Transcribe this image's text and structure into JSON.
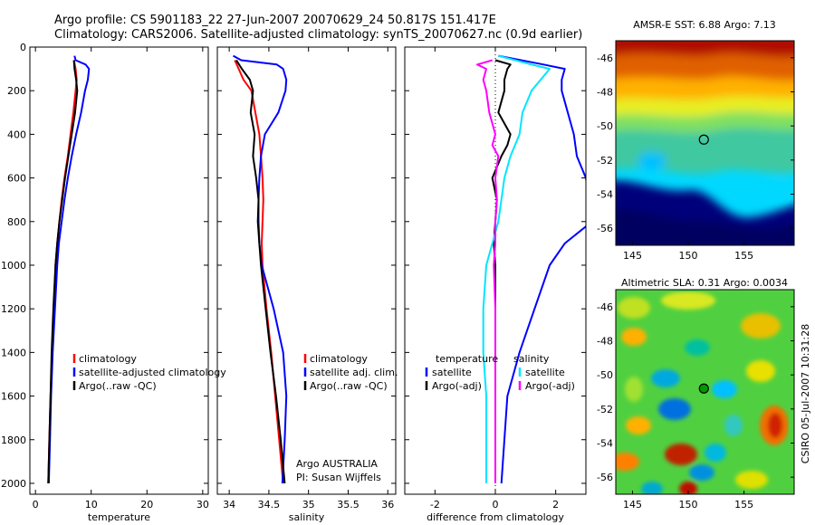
{
  "header": {
    "title_line1": "Argo profile: CS 5901183_22 27-Jun-2007 20070629_24 50.817S 151.417E",
    "title_line2": "Climatology: CARS2006. Satellite-adjusted climatology: synTS_20070627.nc (0.9d earlier)"
  },
  "credit": {
    "float_line1": "Argo AUSTRALIA",
    "float_line2": "PI: Susan Wijffels",
    "stamp": "CSIRO 05-Jul-2007 10:31:28"
  },
  "colors": {
    "climatology": "#ff0000",
    "satellite": "#0000ff",
    "argo": "#000000",
    "satellite_diff_sal": "#00e6ff",
    "argo_diff_sal": "#ff00ff",
    "axis": "#000000"
  },
  "chart_data": [
    {
      "type": "line",
      "id": "temperature",
      "xlabel": "temperature",
      "ylabel": "",
      "xlim": [
        -1,
        31
      ],
      "ylim": [
        2050,
        0
      ],
      "xticks": [
        0,
        10,
        20,
        30
      ],
      "yticks": [
        0,
        200,
        400,
        600,
        800,
        1000,
        1200,
        1400,
        1600,
        1800,
        2000
      ],
      "legend": {
        "position": "lower-right",
        "entries": [
          "climatology",
          "satellite-adjusted climatology",
          "Argo(..raw -QC)"
        ]
      },
      "series": [
        {
          "name": "climatology",
          "color": "#ff0000",
          "points": [
            [
              6.9,
              60
            ],
            [
              7.2,
              100
            ],
            [
              7.4,
              150
            ],
            [
              7.2,
              200
            ],
            [
              6.8,
              300
            ],
            [
              6.3,
              400
            ],
            [
              5.8,
              500
            ],
            [
              5.2,
              600
            ],
            [
              4.7,
              700
            ],
            [
              4.3,
              800
            ],
            [
              3.9,
              900
            ],
            [
              3.6,
              1000
            ],
            [
              3.3,
              1200
            ],
            [
              3.0,
              1400
            ],
            [
              2.7,
              1600
            ],
            [
              2.5,
              1800
            ],
            [
              2.3,
              2000
            ]
          ]
        },
        {
          "name": "satellite-adjusted climatology",
          "color": "#0000ff",
          "points": [
            [
              7.0,
              40
            ],
            [
              7.2,
              60
            ],
            [
              9.0,
              80
            ],
            [
              9.6,
              100
            ],
            [
              9.4,
              150
            ],
            [
              8.9,
              200
            ],
            [
              8.2,
              300
            ],
            [
              7.3,
              400
            ],
            [
              6.5,
              500
            ],
            [
              5.8,
              600
            ],
            [
              5.2,
              700
            ],
            [
              4.7,
              800
            ],
            [
              4.2,
              900
            ],
            [
              3.9,
              1000
            ],
            [
              3.5,
              1200
            ],
            [
              3.1,
              1400
            ],
            [
              2.8,
              1600
            ],
            [
              2.6,
              1800
            ],
            [
              2.4,
              2000
            ]
          ]
        },
        {
          "name": "Argo(..raw -QC)",
          "color": "#000000",
          "points": [
            [
              6.9,
              60
            ],
            [
              7.0,
              100
            ],
            [
              7.3,
              150
            ],
            [
              7.5,
              200
            ],
            [
              7.1,
              300
            ],
            [
              6.5,
              400
            ],
            [
              5.9,
              500
            ],
            [
              5.3,
              600
            ],
            [
              4.8,
              700
            ],
            [
              4.3,
              800
            ],
            [
              3.9,
              900
            ],
            [
              3.6,
              1000
            ],
            [
              3.2,
              1200
            ],
            [
              2.9,
              1400
            ],
            [
              2.7,
              1600
            ],
            [
              2.5,
              1800
            ],
            [
              2.3,
              2000
            ]
          ]
        }
      ]
    },
    {
      "type": "line",
      "id": "salinity",
      "xlabel": "salinity",
      "ylabel": "",
      "xlim": [
        33.85,
        36.1
      ],
      "ylim": [
        2050,
        0
      ],
      "xticks": [
        34,
        34.5,
        35,
        35.5,
        36
      ],
      "yticks": [
        0,
        200,
        400,
        600,
        800,
        1000,
        1200,
        1400,
        1600,
        1800,
        2000
      ],
      "legend": {
        "position": "lower-right",
        "entries": [
          "climatology",
          "satellite adj. clim.",
          "Argo(..raw -QC)"
        ]
      },
      "series": [
        {
          "name": "climatology",
          "color": "#ff0000",
          "points": [
            [
              34.07,
              60
            ],
            [
              34.12,
              100
            ],
            [
              34.18,
              150
            ],
            [
              34.28,
              200
            ],
            [
              34.33,
              300
            ],
            [
              34.38,
              400
            ],
            [
              34.4,
              500
            ],
            [
              34.42,
              600
            ],
            [
              34.43,
              700
            ],
            [
              34.42,
              800
            ],
            [
              34.41,
              900
            ],
            [
              34.42,
              1000
            ],
            [
              34.47,
              1200
            ],
            [
              34.53,
              1400
            ],
            [
              34.58,
              1600
            ],
            [
              34.63,
              1800
            ],
            [
              34.68,
              2000
            ]
          ]
        },
        {
          "name": "satellite adj. clim.",
          "color": "#0000ff",
          "points": [
            [
              34.05,
              40
            ],
            [
              34.15,
              60
            ],
            [
              34.6,
              80
            ],
            [
              34.68,
              100
            ],
            [
              34.72,
              150
            ],
            [
              34.71,
              200
            ],
            [
              34.62,
              300
            ],
            [
              34.45,
              400
            ],
            [
              34.4,
              500
            ],
            [
              34.38,
              600
            ],
            [
              34.37,
              700
            ],
            [
              34.37,
              800
            ],
            [
              34.38,
              900
            ],
            [
              34.41,
              1000
            ],
            [
              34.56,
              1200
            ],
            [
              34.68,
              1400
            ],
            [
              34.72,
              1600
            ],
            [
              34.7,
              1800
            ],
            [
              34.67,
              2000
            ]
          ]
        },
        {
          "name": "Argo(..raw -QC)",
          "color": "#000000",
          "points": [
            [
              34.09,
              60
            ],
            [
              34.16,
              100
            ],
            [
              34.26,
              150
            ],
            [
              34.3,
              200
            ],
            [
              34.27,
              300
            ],
            [
              34.32,
              400
            ],
            [
              34.3,
              500
            ],
            [
              34.34,
              600
            ],
            [
              34.37,
              700
            ],
            [
              34.36,
              800
            ],
            [
              34.38,
              900
            ],
            [
              34.4,
              1000
            ],
            [
              34.46,
              1200
            ],
            [
              34.52,
              1400
            ],
            [
              34.59,
              1600
            ],
            [
              34.65,
              1800
            ],
            [
              34.7,
              2000
            ]
          ]
        }
      ]
    },
    {
      "type": "line",
      "id": "difference",
      "xlabel": "difference from climatology",
      "ylabel": "",
      "xlim": [
        -3,
        3
      ],
      "ylim": [
        2050,
        0
      ],
      "xticks": [
        -2,
        0,
        2
      ],
      "yticks": [
        0,
        200,
        400,
        600,
        800,
        1000,
        1200,
        1400,
        1600,
        1800,
        2000
      ],
      "zero_line": true,
      "legend": {
        "position": "lower-center",
        "temperature_heading": "temperature",
        "salinity_heading": "salinity",
        "entries": [
          "satellite",
          "Argo(-adj)",
          "satellite",
          "Argo(-adj)"
        ]
      },
      "series": [
        {
          "name": "satellite",
          "group": "temperature",
          "color": "#0000ff",
          "points": [
            [
              0.1,
              40
            ],
            [
              1.6,
              80
            ],
            [
              2.3,
              100
            ],
            [
              2.2,
              150
            ],
            [
              2.2,
              200
            ],
            [
              2.4,
              300
            ],
            [
              2.6,
              400
            ],
            [
              2.7,
              500
            ],
            [
              3.0,
              600
            ],
            [
              3.2,
              800
            ],
            [
              2.3,
              900
            ],
            [
              1.8,
              1000
            ],
            [
              1.3,
              1200
            ],
            [
              0.8,
              1400
            ],
            [
              0.4,
              1600
            ],
            [
              0.3,
              1800
            ],
            [
              0.2,
              2000
            ]
          ]
        },
        {
          "name": "Argo(-adj)",
          "group": "temperature",
          "color": "#000000",
          "points": [
            [
              0.0,
              60
            ],
            [
              0.5,
              80
            ],
            [
              0.4,
              100
            ],
            [
              0.3,
              150
            ],
            [
              0.3,
              200
            ],
            [
              0.1,
              300
            ],
            [
              0.5,
              400
            ],
            [
              0.4,
              450
            ],
            [
              0.2,
              500
            ],
            [
              -0.1,
              600
            ],
            [
              0.05,
              700
            ],
            [
              0.0,
              800
            ],
            [
              -0.05,
              900
            ],
            [
              0.0,
              1000
            ],
            [
              0.0,
              1200
            ],
            [
              0.0,
              1400
            ],
            [
              0.0,
              1600
            ],
            [
              0.0,
              1800
            ],
            [
              0.0,
              2000
            ]
          ]
        },
        {
          "name": "satellite",
          "group": "salinity",
          "color": "#00e6ff",
          "points": [
            [
              0.1,
              40
            ],
            [
              1.2,
              80
            ],
            [
              1.8,
              100
            ],
            [
              1.2,
              200
            ],
            [
              0.9,
              300
            ],
            [
              0.8,
              400
            ],
            [
              0.5,
              500
            ],
            [
              0.3,
              600
            ],
            [
              0.2,
              700
            ],
            [
              0.1,
              800
            ],
            [
              -0.1,
              900
            ],
            [
              -0.3,
              1000
            ],
            [
              -0.4,
              1200
            ],
            [
              -0.4,
              1400
            ],
            [
              -0.3,
              1600
            ],
            [
              -0.3,
              1800
            ],
            [
              -0.3,
              2000
            ]
          ]
        },
        {
          "name": "Argo(-adj)",
          "group": "salinity",
          "color": "#ff00ff",
          "points": [
            [
              -0.1,
              60
            ],
            [
              -0.6,
              80
            ],
            [
              -0.3,
              100
            ],
            [
              -0.4,
              150
            ],
            [
              -0.3,
              200
            ],
            [
              -0.2,
              300
            ],
            [
              0.0,
              400
            ],
            [
              -0.1,
              450
            ],
            [
              0.1,
              500
            ],
            [
              0.0,
              600
            ],
            [
              0.05,
              700
            ],
            [
              0.0,
              800
            ],
            [
              0.0,
              900
            ],
            [
              -0.05,
              1000
            ],
            [
              0.0,
              1200
            ],
            [
              0.0,
              1400
            ],
            [
              0.0,
              1600
            ],
            [
              0.0,
              1800
            ],
            [
              0.0,
              2000
            ]
          ]
        }
      ]
    },
    {
      "type": "heatmap",
      "id": "sst_map",
      "title": "AMSR-E SST: 6.88 Argo: 7.13",
      "xlim": [
        143.5,
        159.5
      ],
      "ylim": [
        -57,
        -45
      ],
      "xticks": [
        145,
        150,
        155
      ],
      "yticks": [
        -46,
        -48,
        -50,
        -52,
        -54,
        -56
      ],
      "marker": {
        "lon": 151.4,
        "lat": -50.8,
        "fill": "none"
      }
    },
    {
      "type": "heatmap",
      "id": "sla_map",
      "title": "Altimetric SLA: 0.31 Argo: 0.0034",
      "xlim": [
        143.5,
        159.5
      ],
      "ylim": [
        -57,
        -45
      ],
      "xticks": [
        145,
        150,
        155
      ],
      "yticks": [
        -46,
        -48,
        -50,
        -52,
        -54,
        -56
      ],
      "marker": {
        "lon": 151.4,
        "lat": -50.8,
        "fill": "#009900"
      }
    }
  ]
}
